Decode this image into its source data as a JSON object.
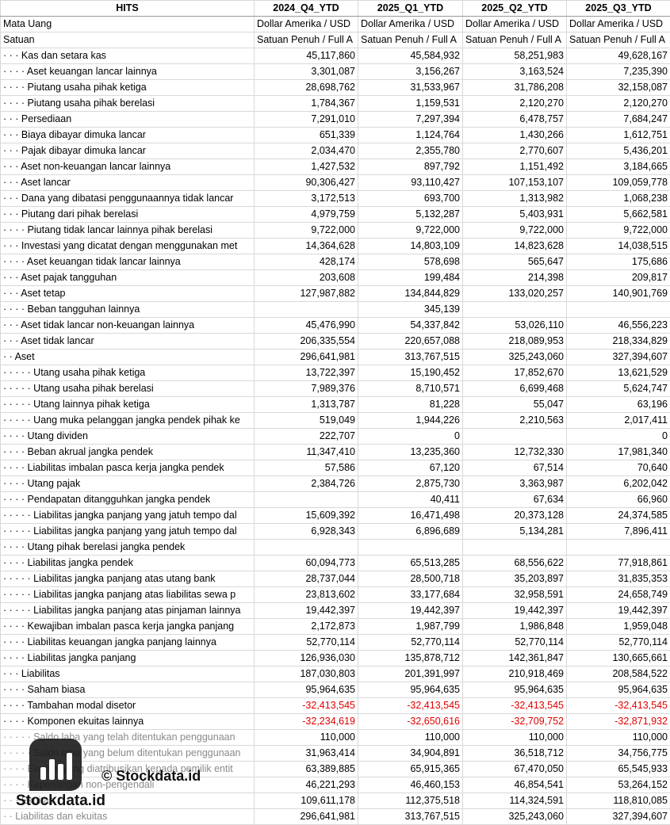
{
  "table": {
    "header": [
      "HITS",
      "2024_Q4_YTD",
      "2025_Q1_YTD",
      "2025_Q2_YTD",
      "2025_Q3_YTD"
    ],
    "rows": [
      [
        "Mata Uang",
        "Dollar Amerika / USD",
        "Dollar Amerika / USD",
        "Dollar Amerika / USD",
        "Dollar Amerika / USD"
      ],
      [
        "Satuan",
        "Satuan Penuh / Full A",
        "Satuan Penuh / Full A",
        "Satuan Penuh / Full A",
        "Satuan Penuh / Full A"
      ],
      [
        "· · · Kas dan setara kas",
        "45,117,860",
        "45,584,932",
        "58,251,983",
        "49,628,167"
      ],
      [
        "· · · · Aset keuangan lancar lainnya",
        "3,301,087",
        "3,156,267",
        "3,163,524",
        "7,235,390"
      ],
      [
        "· · · · Piutang usaha pihak ketiga",
        "28,698,762",
        "31,533,967",
        "31,786,208",
        "32,158,087"
      ],
      [
        "· · · · Piutang usaha pihak berelasi",
        "1,784,367",
        "1,159,531",
        "2,120,270",
        "2,120,270"
      ],
      [
        "· · · Persediaan",
        "7,291,010",
        "7,297,394",
        "6,478,757",
        "7,684,247"
      ],
      [
        "· · · Biaya dibayar dimuka lancar",
        "651,339",
        "1,124,764",
        "1,430,266",
        "1,612,751"
      ],
      [
        "· · · Pajak dibayar dimuka lancar",
        "2,034,470",
        "2,355,780",
        "2,770,607",
        "5,436,201"
      ],
      [
        "· · · Aset non-keuangan lancar lainnya",
        "1,427,532",
        "897,792",
        "1,151,492",
        "3,184,665"
      ],
      [
        "· · · Aset lancar",
        "90,306,427",
        "93,110,427",
        "107,153,107",
        "109,059,778"
      ],
      [
        "· · · Dana yang dibatasi penggunaannya tidak lancar",
        "3,172,513",
        "693,700",
        "1,313,982",
        "1,068,238"
      ],
      [
        "· · · Piutang dari pihak berelasi",
        "4,979,759",
        "5,132,287",
        "5,403,931",
        "5,662,581"
      ],
      [
        "· · · · Piutang tidak lancar lainnya pihak berelasi",
        "9,722,000",
        "9,722,000",
        "9,722,000",
        "9,722,000"
      ],
      [
        "· · · Investasi yang dicatat dengan menggunakan met",
        "14,364,628",
        "14,803,109",
        "14,823,628",
        "14,038,515"
      ],
      [
        "· · · · Aset keuangan tidak lancar lainnya",
        "428,174",
        "578,698",
        "565,647",
        "175,686"
      ],
      [
        "· · · Aset pajak tangguhan",
        "203,608",
        "199,484",
        "214,398",
        "209,817"
      ],
      [
        "· · · Aset tetap",
        "127,987,882",
        "134,844,829",
        "133,020,257",
        "140,901,769"
      ],
      [
        "· · · · Beban tangguhan lainnya",
        null,
        "345,139",
        null,
        null
      ],
      [
        "· · · Aset tidak lancar non-keuangan lainnya",
        "45,476,990",
        "54,337,842",
        "53,026,110",
        "46,556,223"
      ],
      [
        "· · · Aset tidak lancar",
        "206,335,554",
        "220,657,088",
        "218,089,953",
        "218,334,829"
      ],
      [
        "· · Aset",
        "296,641,981",
        "313,767,515",
        "325,243,060",
        "327,394,607"
      ],
      [
        "· · · · · Utang usaha pihak ketiga",
        "13,722,397",
        "15,190,452",
        "17,852,670",
        "13,621,529"
      ],
      [
        "· · · · · Utang usaha pihak berelasi",
        "7,989,376",
        "8,710,571",
        "6,699,468",
        "5,624,747"
      ],
      [
        "· · · · · Utang lainnya pihak ketiga",
        "1,313,787",
        "81,228",
        "55,047",
        "63,196"
      ],
      [
        "· · · · · Uang muka pelanggan jangka pendek pihak ke",
        "519,049",
        "1,944,226",
        "2,210,563",
        "2,017,411"
      ],
      [
        "· · · · Utang dividen",
        "222,707",
        "0",
        null,
        "0"
      ],
      [
        "· · · · Beban akrual jangka pendek",
        "11,347,410",
        "13,235,360",
        "12,732,330",
        "17,981,340"
      ],
      [
        "· · · · Liabilitas imbalan pasca kerja jangka pendek",
        "57,586",
        "67,120",
        "67,514",
        "70,640"
      ],
      [
        "· · · · Utang pajak",
        "2,384,726",
        "2,875,730",
        "3,363,987",
        "6,202,042"
      ],
      [
        "· · · · Pendapatan ditangguhkan jangka pendek",
        null,
        "40,411",
        "67,634",
        "66,960"
      ],
      [
        "· · · · · Liabilitas jangka panjang yang jatuh tempo dal",
        "15,609,392",
        "16,471,498",
        "20,373,128",
        "24,374,585"
      ],
      [
        "· · · · · Liabilitas jangka panjang yang jatuh tempo dal",
        "6,928,343",
        "6,896,689",
        "5,134,281",
        "7,896,411"
      ],
      [
        "· · · · Utang pihak berelasi jangka pendek",
        null,
        null,
        null,
        null
      ],
      [
        "· · · · Liabilitas jangka pendek",
        "60,094,773",
        "65,513,285",
        "68,556,622",
        "77,918,861"
      ],
      [
        "· · · · · Liabilitas jangka panjang atas utang bank",
        "28,737,044",
        "28,500,718",
        "35,203,897",
        "31,835,353"
      ],
      [
        "· · · · · Liabilitas jangka panjang atas liabilitas sewa p",
        "23,813,602",
        "33,177,684",
        "32,958,591",
        "24,658,749"
      ],
      [
        "· · · · · Liabilitas jangka panjang atas pinjaman lainnya",
        "19,442,397",
        "19,442,397",
        "19,442,397",
        "19,442,397"
      ],
      [
        "· · · · Kewajiban imbalan pasca kerja jangka panjang",
        "2,172,873",
        "1,987,799",
        "1,986,848",
        "1,959,048"
      ],
      [
        "· · · · Liabilitas keuangan jangka panjang lainnya",
        "52,770,114",
        "52,770,114",
        "52,770,114",
        "52,770,114"
      ],
      [
        "· · · · Liabilitas jangka panjang",
        "126,936,030",
        "135,878,712",
        "142,361,847",
        "130,665,661"
      ],
      [
        "· · · Liabilitas",
        "187,030,803",
        "201,391,997",
        "210,918,469",
        "208,584,522"
      ],
      [
        "· · · · Saham biasa",
        "95,964,635",
        "95,964,635",
        "95,964,635",
        "95,964,635"
      ],
      [
        "· · · · Tambahan modal disetor",
        "-32,413,545",
        "-32,413,545",
        "-32,413,545",
        "-32,413,545"
      ],
      [
        "· · · · Komponen ekuitas lainnya",
        "-32,234,619",
        "-32,650,616",
        "-32,709,752",
        "-32,871,932"
      ],
      [
        "· · · · · Saldo laba yang telah ditentukan penggunaan",
        "110,000",
        "110,000",
        "110,000",
        "110,000"
      ],
      [
        "· · · · · Saldo laba yang belum ditentukan penggunaan",
        "31,963,414",
        "34,904,891",
        "36,518,712",
        "34,756,775"
      ],
      [
        "· · · · Ekuitas yang diatribusikan kepada pemilik entit",
        "63,389,885",
        "65,915,365",
        "67,470,050",
        "65,545,933"
      ],
      [
        "· · · · Kepentingan non-pengendali",
        "46,221,293",
        "46,460,153",
        "46,854,541",
        "53,264,152"
      ],
      [
        "· · · Ekuitas",
        "109,611,178",
        "112,375,518",
        "114,324,591",
        "118,810,085"
      ],
      [
        "· · Liabilitas dan ekuitas",
        "296,641,981",
        "313,767,515",
        "325,243,060",
        "327,394,607"
      ]
    ]
  },
  "watermark": {
    "brand": "Stockdata.id",
    "copyright": "© Stockdata.id"
  }
}
